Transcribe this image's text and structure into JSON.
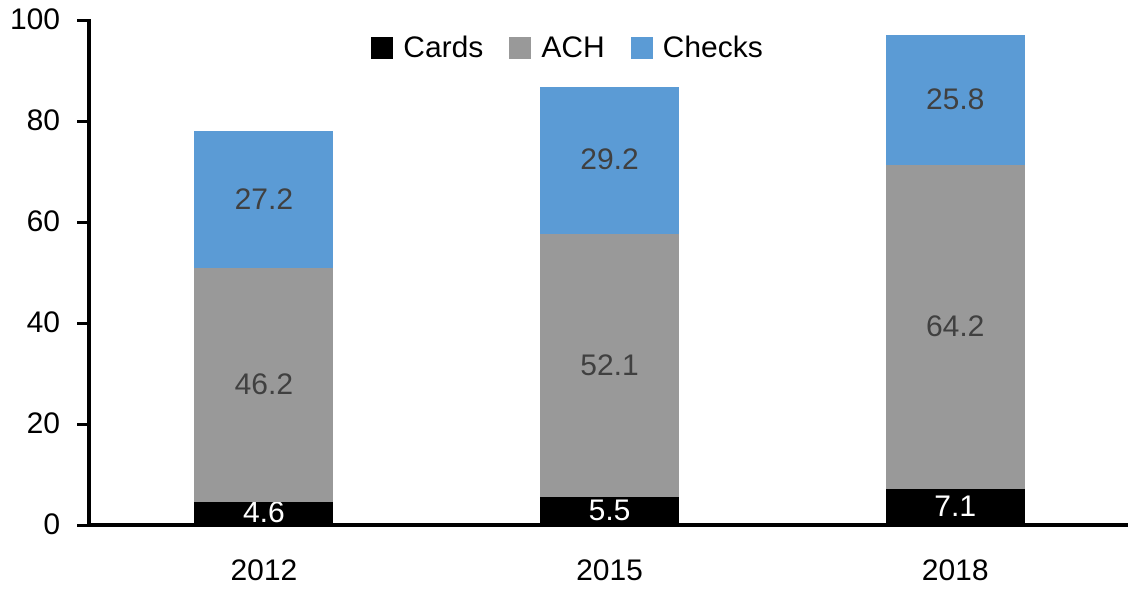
{
  "chart_data": {
    "type": "bar",
    "stacked": true,
    "categories": [
      "2012",
      "2015",
      "2018"
    ],
    "series": [
      {
        "name": "Cards",
        "color": "#000000",
        "label_color": "#ffffff",
        "values": [
          4.6,
          5.5,
          7.1
        ]
      },
      {
        "name": "ACH",
        "color": "#999999",
        "label_color": "#404040",
        "values": [
          46.2,
          52.1,
          64.2
        ]
      },
      {
        "name": "Checks",
        "color": "#5B9BD5",
        "label_color": "#404040",
        "values": [
          27.2,
          29.2,
          25.8
        ]
      }
    ],
    "totals": [
      78.0,
      86.8,
      97.1
    ],
    "ylim": [
      0,
      100
    ],
    "y_ticks": [
      0,
      20,
      40,
      60,
      80,
      100
    ],
    "grid": false,
    "legend_position": "top",
    "axis_color": "#000000",
    "background_color": "#ffffff"
  }
}
